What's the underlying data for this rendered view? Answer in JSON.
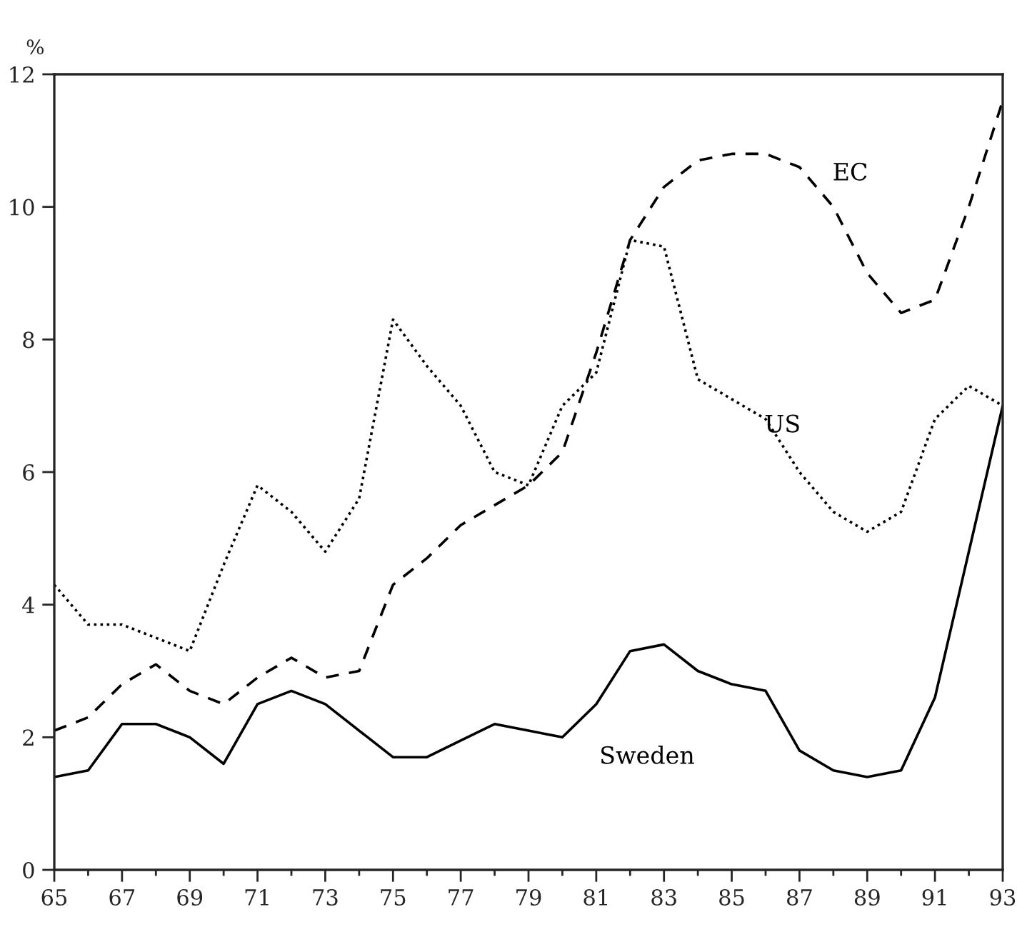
{
  "chart_data": {
    "type": "line",
    "ylabel": "%",
    "x": [
      65,
      66,
      67,
      68,
      69,
      70,
      71,
      72,
      73,
      74,
      75,
      76,
      77,
      78,
      79,
      80,
      81,
      82,
      83,
      84,
      85,
      86,
      87,
      88,
      89,
      90,
      91,
      92,
      93
    ],
    "series": [
      {
        "name": "Sweden",
        "color": "#000000",
        "line_style": "solid",
        "values": [
          1.4,
          1.5,
          2.2,
          2.2,
          2.0,
          1.6,
          2.5,
          2.7,
          2.5,
          2.1,
          1.7,
          1.7,
          1.95,
          2.2,
          2.1,
          2.0,
          2.5,
          3.3,
          3.4,
          3.0,
          2.8,
          2.7,
          1.8,
          1.5,
          1.4,
          1.5,
          2.6,
          4.8,
          7.0
        ]
      },
      {
        "name": "US",
        "color": "#000000",
        "line_style": "dotted",
        "values": [
          4.3,
          3.7,
          3.7,
          3.5,
          3.3,
          4.6,
          5.8,
          5.4,
          4.8,
          5.6,
          8.3,
          7.6,
          7.0,
          6.0,
          5.8,
          7.0,
          7.5,
          9.5,
          9.4,
          7.4,
          7.1,
          6.8,
          6.0,
          5.4,
          5.1,
          5.4,
          6.8,
          7.3,
          7.0
        ]
      },
      {
        "name": "EC",
        "color": "#000000",
        "line_style": "dashed",
        "values": [
          2.1,
          2.3,
          2.8,
          3.1,
          2.7,
          2.5,
          2.9,
          3.2,
          2.9,
          3.0,
          4.3,
          4.7,
          5.2,
          5.5,
          5.8,
          6.3,
          7.8,
          9.5,
          10.3,
          10.7,
          10.8,
          10.8,
          10.6,
          10.0,
          9.0,
          8.4,
          8.6,
          10.0,
          11.6
        ]
      }
    ],
    "xlim": [
      65,
      93
    ],
    "xticks": [
      65,
      {
        "value": 66,
        "label": null
      },
      67,
      {
        "value": 68,
        "label": null
      },
      69,
      {
        "value": 70,
        "label": null
      },
      71,
      {
        "value": 72,
        "label": null
      },
      73,
      {
        "value": 74,
        "label": null
      },
      75,
      {
        "value": 76,
        "label": null
      },
      77,
      {
        "value": 78,
        "label": null
      },
      79,
      {
        "value": 80,
        "label": null
      },
      81,
      {
        "value": 82,
        "label": null
      },
      83,
      {
        "value": 84,
        "label": null
      },
      85,
      {
        "value": 86,
        "label": null
      },
      87,
      {
        "value": 88,
        "label": null
      },
      89,
      {
        "value": 90,
        "label": null
      },
      91,
      {
        "value": 92,
        "label": null
      },
      93
    ],
    "ylim": [
      0,
      12
    ],
    "yticks": [
      0,
      2,
      4,
      6,
      8,
      10,
      12
    ],
    "grid": false,
    "legend": false,
    "marker": "none"
  }
}
